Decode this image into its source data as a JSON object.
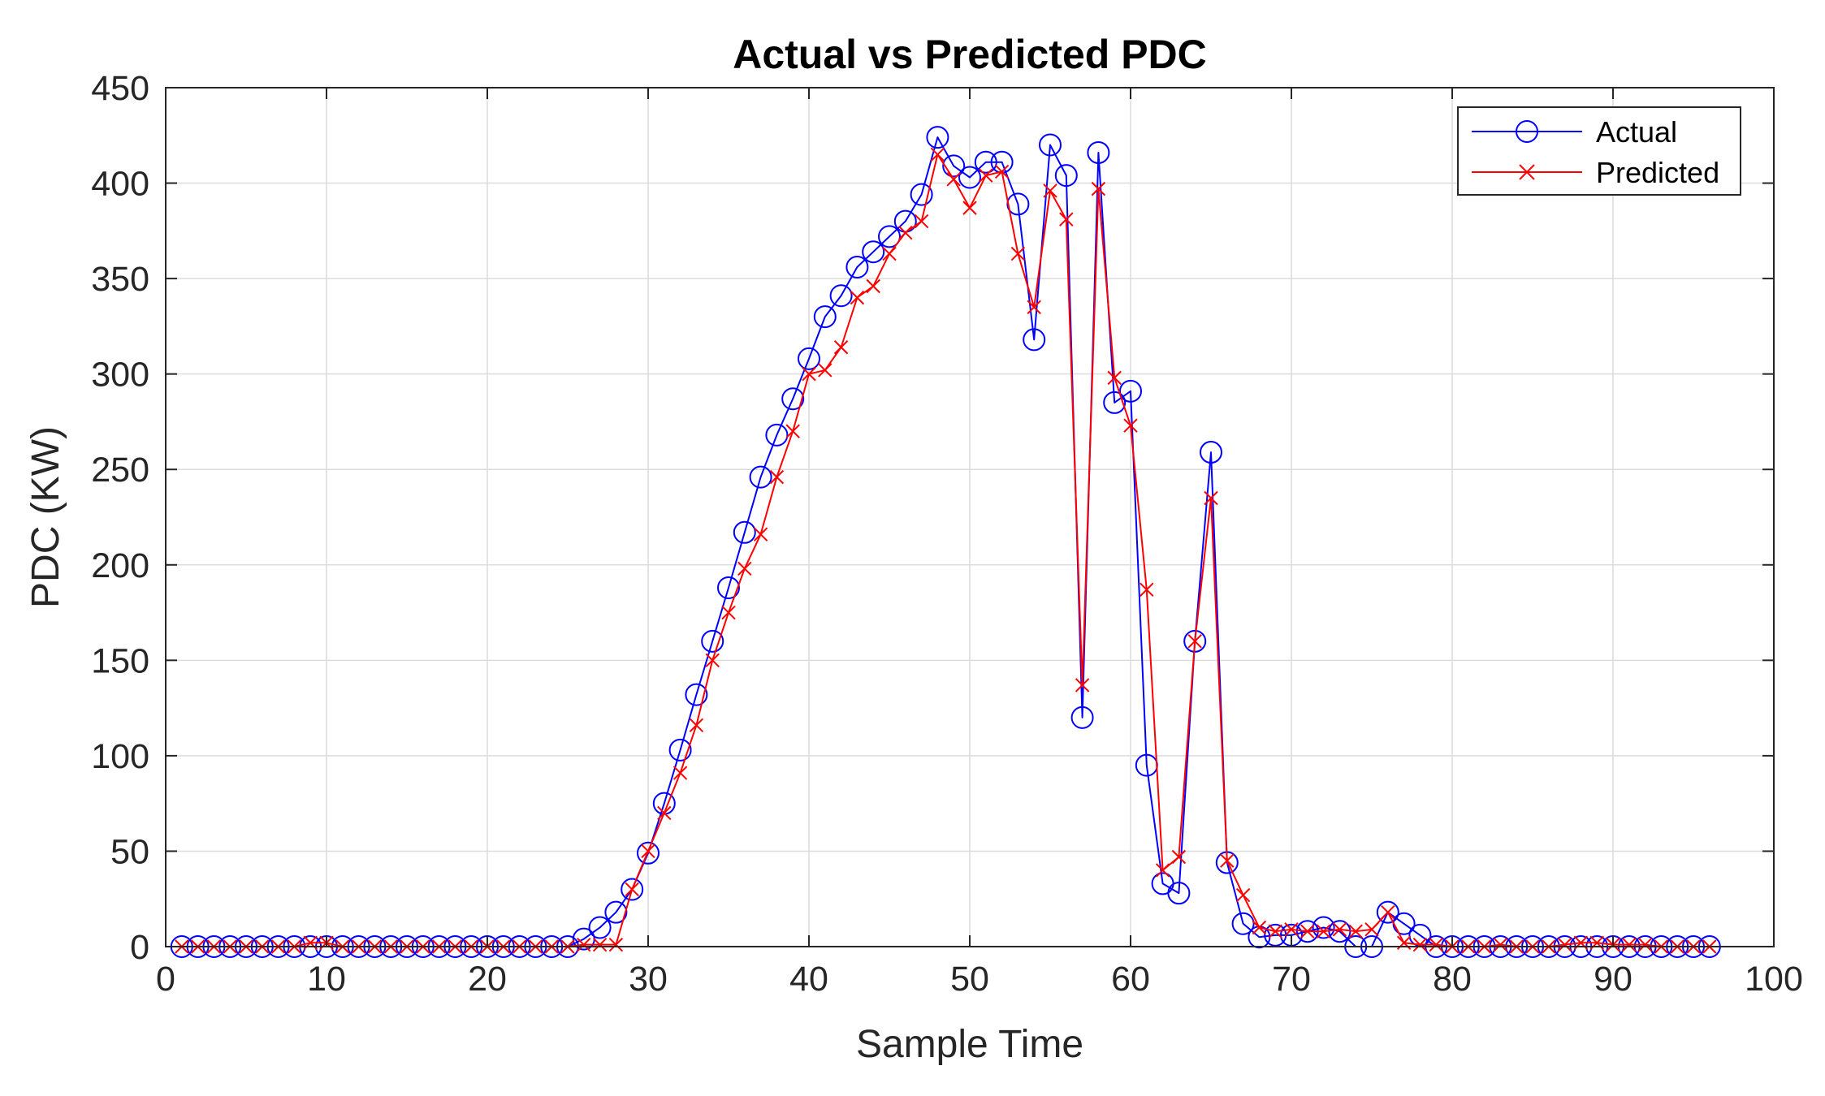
{
  "colors": {
    "actual": "#0000ff",
    "predicted": "#ff0000",
    "axis": "#262626",
    "grid": "#dcdcdc",
    "background": "#ffffff"
  },
  "chart_data": {
    "type": "line",
    "title": "Actual vs Predicted PDC",
    "xlabel": "Sample Time",
    "ylabel": "PDC (KW)",
    "xlim": [
      0,
      100
    ],
    "ylim": [
      0,
      450
    ],
    "xticks": [
      0,
      10,
      20,
      30,
      40,
      50,
      60,
      70,
      80,
      90,
      100
    ],
    "yticks": [
      0,
      50,
      100,
      150,
      200,
      250,
      300,
      350,
      400,
      450
    ],
    "grid": true,
    "legend_position": "top-right",
    "x": [
      1,
      2,
      3,
      4,
      5,
      6,
      7,
      8,
      9,
      10,
      11,
      12,
      13,
      14,
      15,
      16,
      17,
      18,
      19,
      20,
      21,
      22,
      23,
      24,
      25,
      26,
      27,
      28,
      29,
      30,
      31,
      32,
      33,
      34,
      35,
      36,
      37,
      38,
      39,
      40,
      41,
      42,
      43,
      44,
      45,
      46,
      47,
      48,
      49,
      50,
      51,
      52,
      53,
      54,
      55,
      56,
      57,
      58,
      59,
      60,
      61,
      62,
      63,
      64,
      65,
      66,
      67,
      68,
      69,
      70,
      71,
      72,
      73,
      74,
      75,
      76,
      77,
      78,
      79,
      80,
      81,
      82,
      83,
      84,
      85,
      86,
      87,
      88,
      89,
      90,
      91,
      92,
      93,
      94,
      95,
      96
    ],
    "series": [
      {
        "name": "Actual",
        "color": "#0000ff",
        "marker": "circle",
        "values": [
          0,
          0,
          0,
          0,
          0,
          0,
          0,
          0,
          0,
          0,
          0,
          0,
          0,
          0,
          0,
          0,
          0,
          0,
          0,
          0,
          0,
          0,
          0,
          0,
          0,
          4,
          10,
          18,
          30,
          49,
          75,
          103,
          132,
          160,
          188,
          217,
          246,
          268,
          287,
          308,
          330,
          341,
          356,
          364,
          372,
          380,
          394,
          424,
          409,
          403,
          411,
          411,
          389,
          318,
          420,
          404,
          120,
          416,
          285,
          291,
          95,
          33,
          28,
          160,
          259,
          44,
          12,
          5,
          6,
          6,
          8,
          10,
          8,
          0,
          0,
          18,
          12,
          6,
          0,
          0,
          0,
          0,
          0,
          0,
          0,
          0,
          0,
          0,
          0,
          0,
          0,
          0,
          0,
          0,
          0,
          0
        ]
      },
      {
        "name": "Predicted",
        "color": "#ff0000",
        "marker": "x",
        "values": [
          0,
          0,
          0,
          0,
          0,
          0,
          0,
          0,
          2,
          2,
          0,
          0,
          0,
          0,
          0,
          0,
          0,
          0,
          0,
          0,
          0,
          0,
          0,
          0,
          0,
          1,
          1,
          1,
          30,
          50,
          70,
          91,
          116,
          150,
          175,
          198,
          216,
          246,
          270,
          300,
          302,
          314,
          340,
          346,
          363,
          374,
          380,
          415,
          402,
          387,
          404,
          406,
          363,
          335,
          396,
          381,
          137,
          397,
          298,
          273,
          187,
          40,
          47,
          160,
          235,
          45,
          27,
          10,
          8,
          9,
          8,
          8,
          9,
          8,
          9,
          18,
          2,
          1,
          1,
          0,
          0,
          0,
          1,
          0,
          0,
          0,
          1,
          2,
          2,
          1,
          1,
          1,
          0,
          0,
          0,
          0
        ]
      }
    ]
  }
}
